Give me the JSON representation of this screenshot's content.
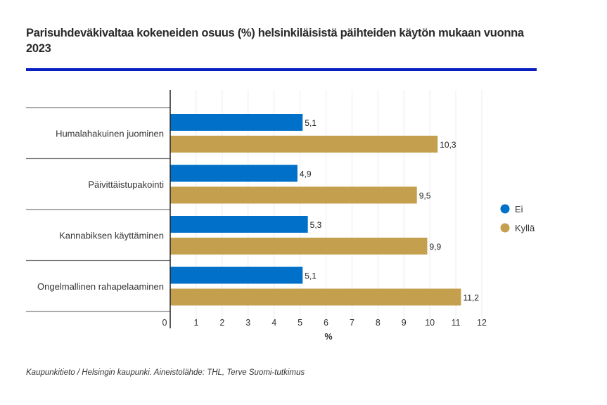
{
  "chart_data": {
    "type": "bar",
    "orientation": "horizontal",
    "title": "Parisuhdeväkivaltaa kokeneiden osuus (%) helsinkiläisistä päihteiden käytön mukaan vuonna 2023",
    "categories": [
      "Humalahakuinen juominen",
      "Päivittäistupakointi",
      "Kannabiksen käyttäminen",
      "Ongelmallinen rahapelaaminen"
    ],
    "series": [
      {
        "name": "Ei",
        "color": "#0070c8",
        "values": [
          5.1,
          4.9,
          5.3,
          5.1
        ],
        "labels": [
          "5,1",
          "4,9",
          "5,3",
          "5,1"
        ]
      },
      {
        "name": "Kyllä",
        "color": "#c4a04e",
        "values": [
          10.3,
          9.5,
          9.9,
          11.2
        ],
        "labels": [
          "10,3",
          "9,5",
          "9,9",
          "11,2"
        ]
      }
    ],
    "xlabel": "%",
    "ylabel": "",
    "xlim": [
      0,
      12
    ],
    "xticks": [
      "0",
      "1",
      "2",
      "3",
      "4",
      "5",
      "6",
      "7",
      "8",
      "9",
      "10",
      "11",
      "12"
    ],
    "grid": true,
    "legend": "right"
  },
  "source": "Kaupunkitieto / Helsingin kaupunki. Aineistolähde: THL, Terve Suomi-tutkimus",
  "accent_color": "#0a1fbf"
}
